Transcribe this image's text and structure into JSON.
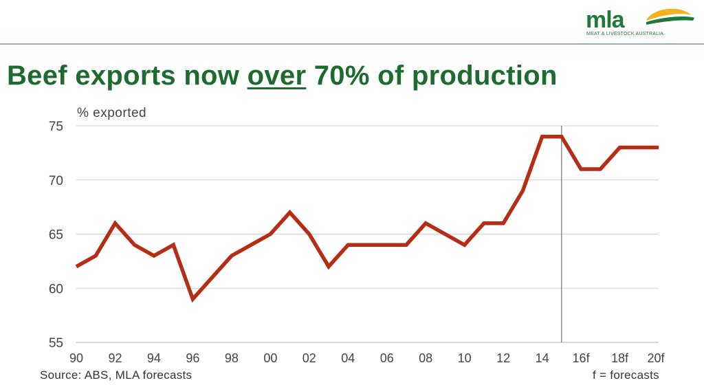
{
  "header": {
    "title_before": "Beef exports now ",
    "title_emphasis": "over",
    "title_after": " 70% of production"
  },
  "logo": {
    "wordmark": "mla",
    "subtitle": "MEAT & LIVESTOCK AUSTRALIA",
    "icon": "sun-over-field-logo"
  },
  "footer": {
    "source": "Source: ABS, MLA forecasts",
    "note": "f = forecasts"
  },
  "colors": {
    "line": "#b52d15",
    "title": "#1e6b30",
    "grid": "#d0d0d0",
    "logo_green": "#1f7a3a",
    "logo_sun": "#f3b21c"
  },
  "chart_data": {
    "type": "line",
    "ylabel": "% exported",
    "xlabel": "",
    "ylim": [
      55,
      75
    ],
    "yticks": [
      55,
      60,
      65,
      70,
      75
    ],
    "grid": true,
    "forecast_divider_at": "15",
    "x": [
      "90",
      "91",
      "92",
      "93",
      "94",
      "95",
      "96",
      "97",
      "98",
      "99",
      "00",
      "01",
      "02",
      "03",
      "04",
      "05",
      "06",
      "07",
      "08",
      "09",
      "10",
      "11",
      "12",
      "13",
      "14",
      "15",
      "16f",
      "17f",
      "18f",
      "19f",
      "20f"
    ],
    "xtick_labels": [
      "90",
      "92",
      "94",
      "96",
      "98",
      "00",
      "02",
      "04",
      "06",
      "08",
      "10",
      "12",
      "14",
      "16f",
      "18f",
      "20f"
    ],
    "series": [
      {
        "values": [
          62,
          63,
          66,
          64,
          63,
          64,
          59,
          61,
          63,
          64,
          65,
          67,
          65,
          62,
          64,
          64,
          64,
          64,
          66,
          65,
          64,
          66,
          66,
          69,
          74,
          74,
          71,
          71,
          73,
          73,
          73
        ]
      }
    ]
  }
}
